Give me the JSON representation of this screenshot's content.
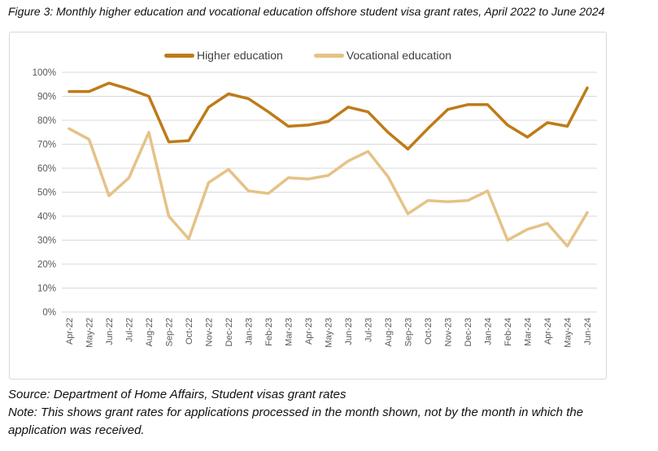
{
  "figure_title": "Figure 3: Monthly higher education and vocational education offshore student visa grant rates, April 2022 to June 2024",
  "chart_data": {
    "type": "line",
    "categories": [
      "Apr-22",
      "May-22",
      "Jun-22",
      "Jul-22",
      "Aug-22",
      "Sep-22",
      "Oct-22",
      "Nov-22",
      "Dec-22",
      "Jan-23",
      "Feb-23",
      "Mar-23",
      "Apr-23",
      "May-23",
      "Jun-23",
      "Jul-23",
      "Aug-23",
      "Sep-23",
      "Oct-23",
      "Nov-23",
      "Dec-23",
      "Jan-24",
      "Feb-24",
      "Mar-24",
      "Apr-24",
      "May-24",
      "Jun-24"
    ],
    "series": [
      {
        "name": "Higher education",
        "color": "#BE7B17",
        "values": [
          92,
          92,
          95.5,
          93,
          90,
          71,
          71.5,
          85.5,
          91,
          89,
          83.5,
          77.5,
          78,
          79.5,
          85.5,
          83.5,
          75,
          68,
          76.5,
          84.5,
          86.5,
          86.5,
          78,
          73,
          79,
          77.5,
          93.5
        ]
      },
      {
        "name": "Vocational education",
        "color": "#E5C287",
        "values": [
          76.5,
          72,
          48.5,
          56,
          75,
          40,
          30.5,
          54,
          59.5,
          50.5,
          49.5,
          56,
          55.5,
          57,
          63,
          67,
          56.5,
          41,
          46.5,
          46,
          46.5,
          50.5,
          30,
          34.5,
          37,
          27.5,
          41.5
        ]
      }
    ],
    "title": "",
    "xlabel": "",
    "ylabel": "",
    "ylim": [
      0,
      100
    ],
    "ytick_step": 10,
    "yticks": [
      "0%",
      "10%",
      "20%",
      "30%",
      "40%",
      "50%",
      "60%",
      "70%",
      "80%",
      "90%",
      "100%"
    ],
    "grid": "horizontal",
    "legend_position": "top-center",
    "gridline_color": "#D9D9D9",
    "tick_label_color": "#595959",
    "plot_border_color": "#D8D8D8"
  },
  "source_line": "Source: Department of Home Affairs, Student visas grant rates",
  "note_line": "Note: This shows grant rates for applications processed in the month shown, not by the month in which the application was received."
}
